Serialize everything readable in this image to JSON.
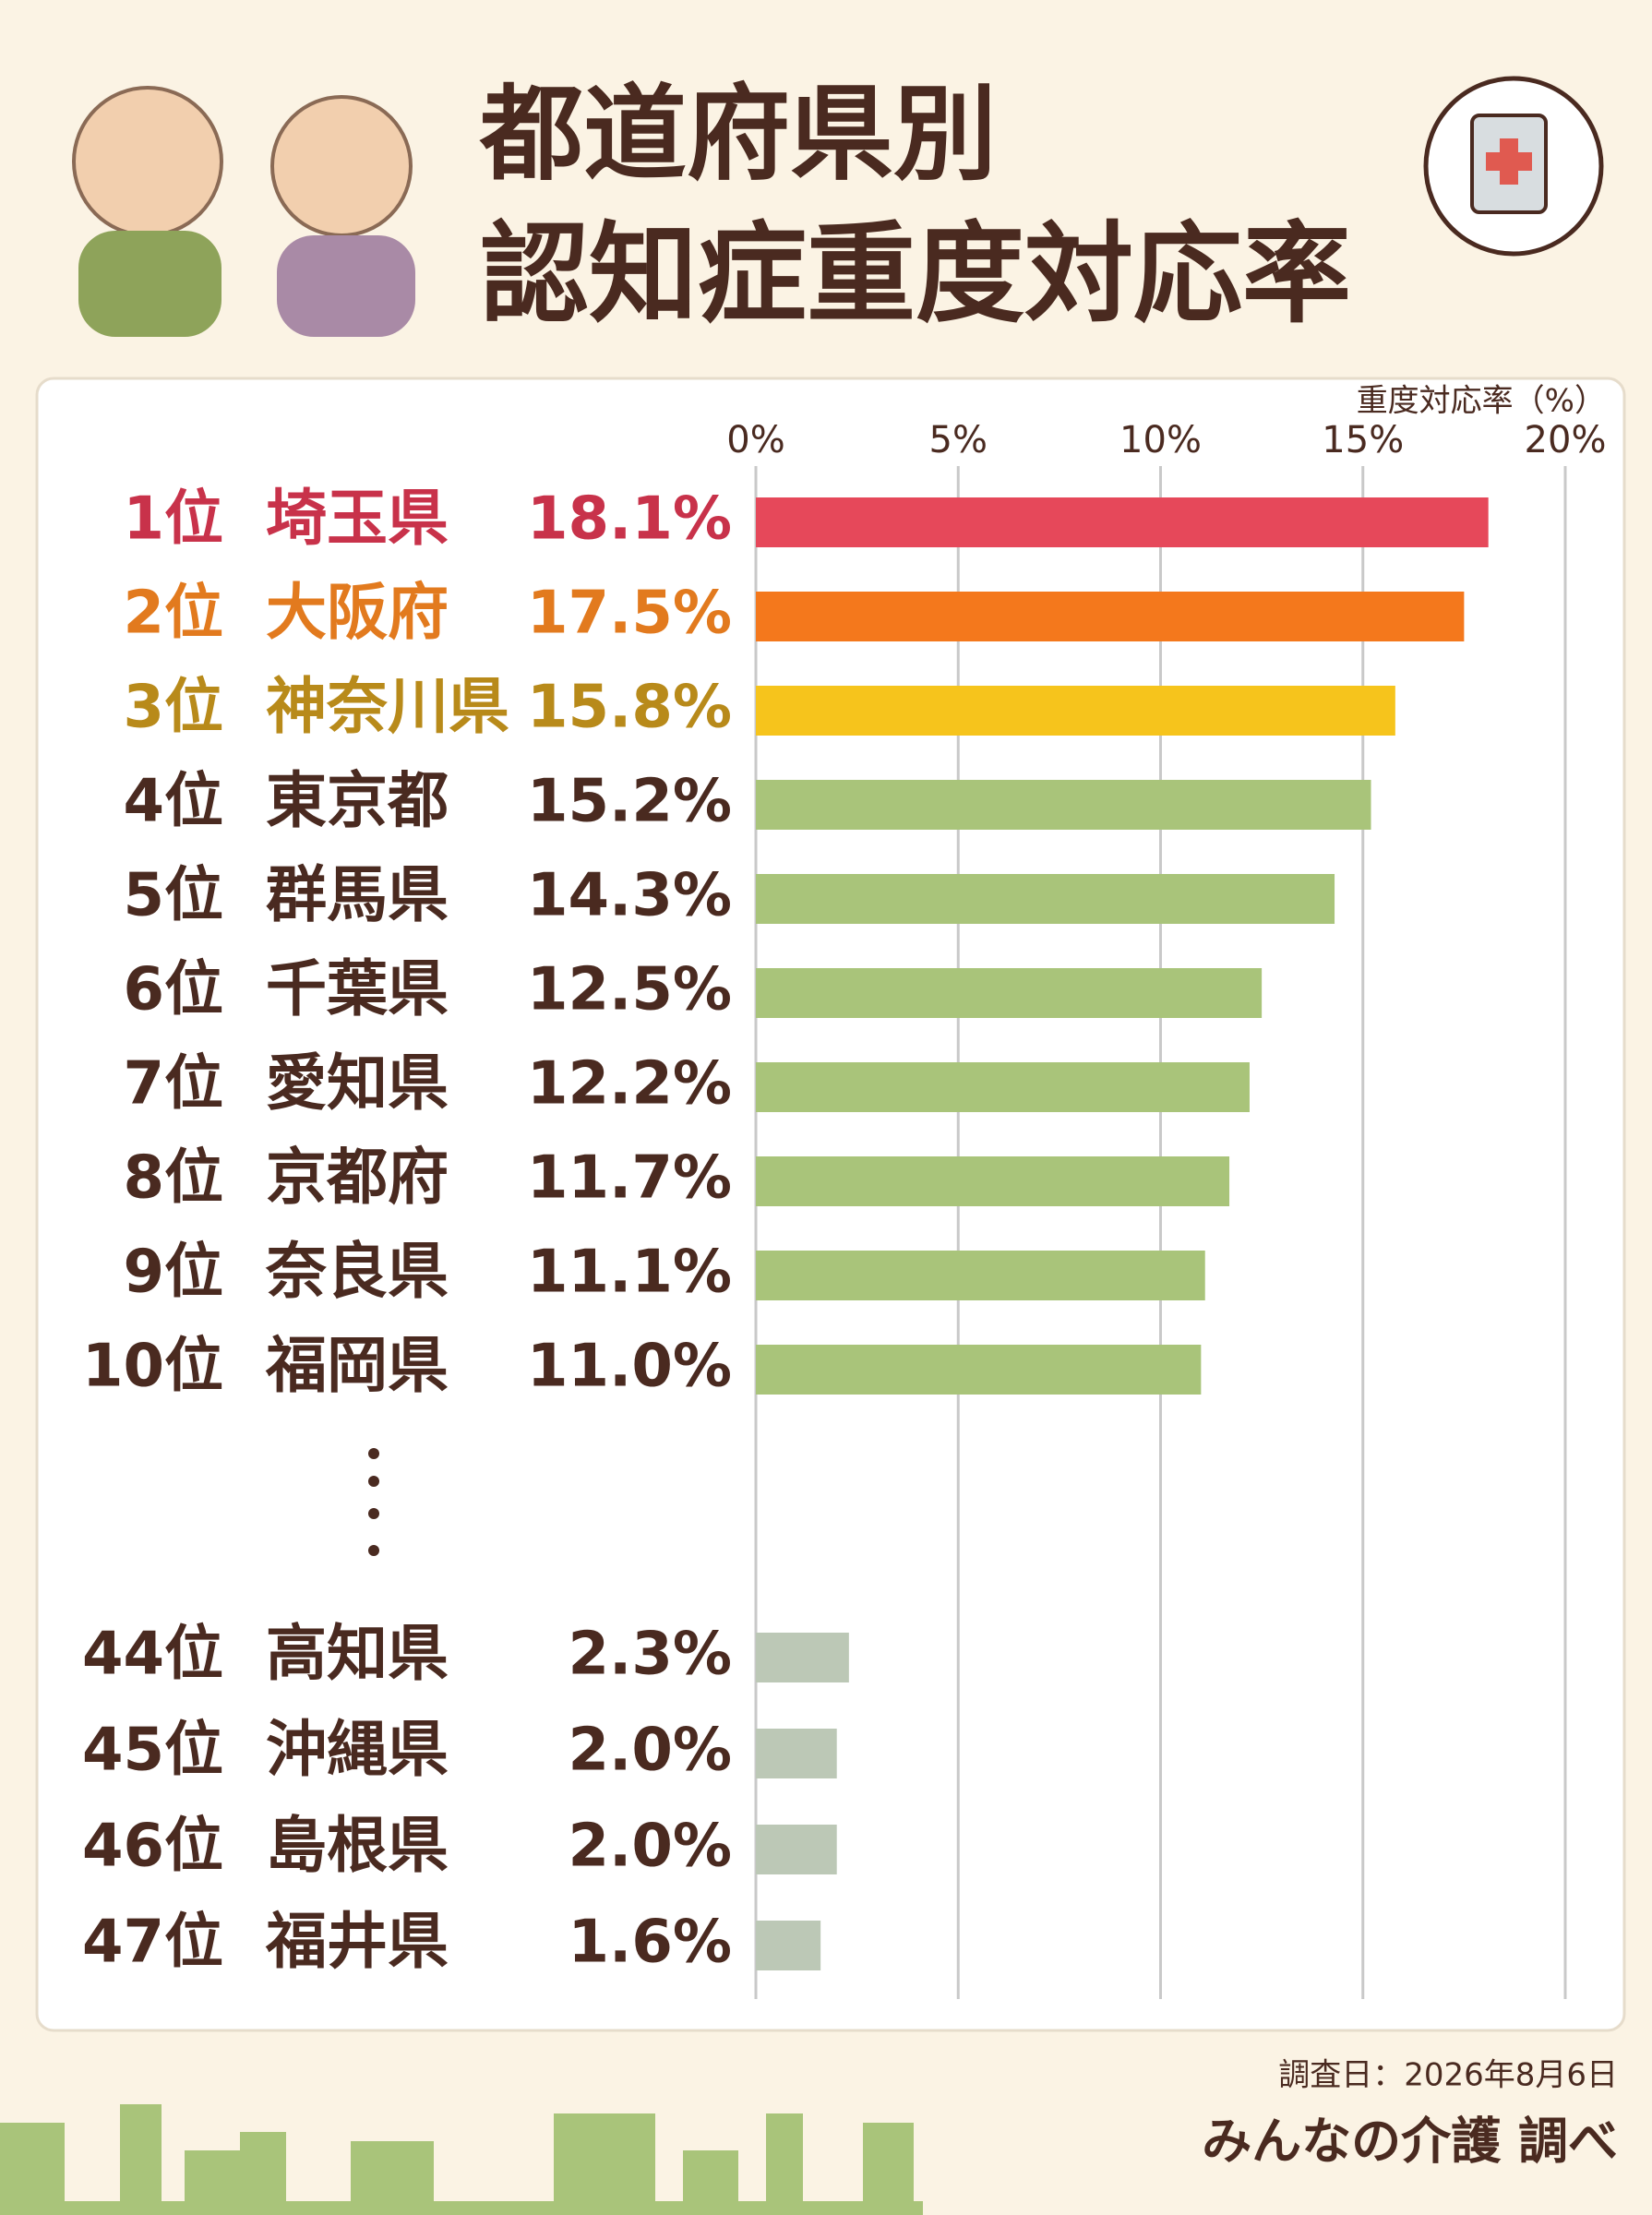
{
  "chart_data": {
    "type": "bar",
    "orientation": "horizontal",
    "title": "都道府県別",
    "subtitle": "認知症重度対応率",
    "x_label": "重度対応率（%）",
    "xlim": [
      0,
      20
    ],
    "xticks": [
      {
        "value": 0,
        "label": "0%"
      },
      {
        "value": 5,
        "label": "5%"
      },
      {
        "value": 10,
        "label": "10%"
      },
      {
        "value": 15,
        "label": "15%"
      },
      {
        "value": 20,
        "label": "20%"
      }
    ],
    "grid": true,
    "ranks": [
      "1位",
      "2位",
      "3位",
      "4位",
      "5位",
      "6位",
      "7位",
      "8位",
      "9位",
      "10位",
      "44位",
      "45位",
      "46位",
      "47位"
    ],
    "categories": [
      "埼玉県",
      "大阪府",
      "神奈川県",
      "東京都",
      "群馬県",
      "千葉県",
      "愛知県",
      "京都府",
      "奈良県",
      "福岡県",
      "高知県",
      "沖縄県",
      "島根県",
      "福井県"
    ],
    "values": [
      18.1,
      17.5,
      15.8,
      15.2,
      14.3,
      12.5,
      12.2,
      11.7,
      11.1,
      11.0,
      2.3,
      2.0,
      2.0,
      1.6
    ],
    "value_labels": [
      "18.1%",
      "17.5%",
      "15.8%",
      "15.2%",
      "14.3%",
      "12.5%",
      "12.2%",
      "11.7%",
      "11.1%",
      "11.0%",
      "2.3%",
      "2.0%",
      "2.0%",
      "1.6%"
    ],
    "colors": [
      "#e6485a",
      "#f4781c",
      "#f6c41c",
      "#a9c47a",
      "#a9c47a",
      "#a9c47a",
      "#a9c47a",
      "#a9c47a",
      "#a9c47a",
      "#a9c47a",
      "#bcc8b6",
      "#bcc8b6",
      "#bcc8b6",
      "#bcc8b6"
    ],
    "label_colors": [
      "#c8324a",
      "#e27a1e",
      "#b88a1a",
      "#4a2a20",
      "#4a2a20",
      "#4a2a20",
      "#4a2a20",
      "#4a2a20",
      "#4a2a20",
      "#4a2a20",
      "#4a2a20",
      "#4a2a20",
      "#4a2a20",
      "#4a2a20"
    ]
  },
  "footer": {
    "date": "調査日：2026年8月6日",
    "source": "みんなの介護 調べ"
  }
}
